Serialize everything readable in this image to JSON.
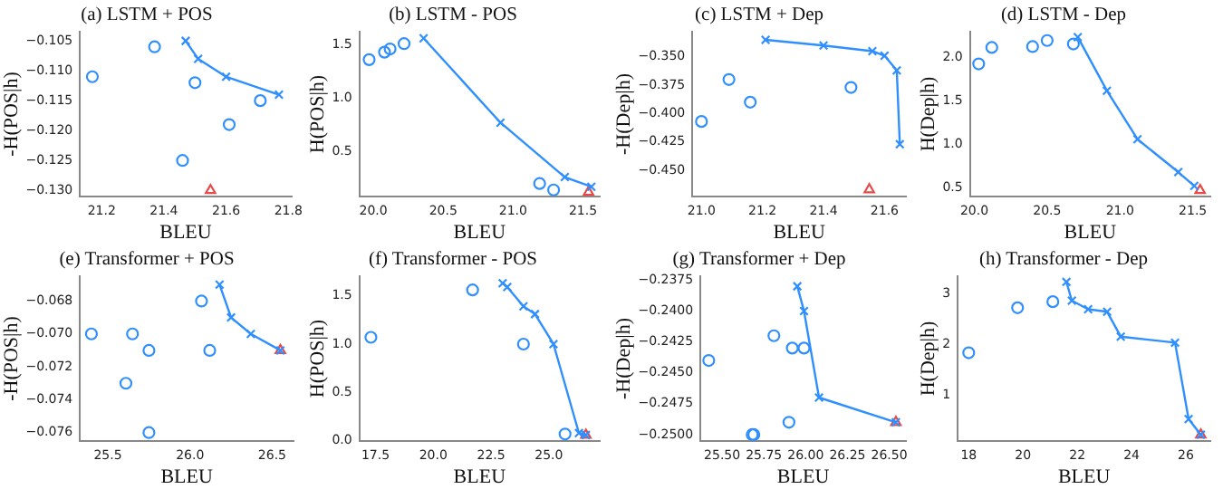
{
  "chart_data": [
    {
      "type": "scatter",
      "title": "(a) LSTM + POS",
      "xlabel": "BLEU",
      "ylabel": "-H(POS|h)",
      "xlim": [
        21.13,
        21.81
      ],
      "xticks": [
        21.2,
        21.4,
        21.6,
        21.8
      ],
      "ylim": [
        -0.131,
        -0.1035
      ],
      "yticks": [
        {
          "value": -0.105,
          "label": "−0.105"
        },
        {
          "value": -0.11,
          "label": "−0.110"
        },
        {
          "value": -0.115,
          "label": "−0.115"
        },
        {
          "value": -0.12,
          "label": "−0.120"
        },
        {
          "value": -0.125,
          "label": "−0.125"
        },
        {
          "value": -0.13,
          "label": "−0.130"
        }
      ],
      "series": [
        {
          "type": "scatter",
          "marker": "circle",
          "color": "#2f8fff",
          "x": [
            21.17,
            21.37,
            21.5,
            21.46,
            21.61,
            21.71
          ],
          "values": [
            -0.111,
            -0.106,
            -0.112,
            -0.125,
            -0.119,
            -0.115
          ]
        },
        {
          "type": "line",
          "marker": "cross",
          "color": "#2f8fff",
          "x": [
            21.47,
            21.51,
            21.6,
            21.77
          ],
          "values": [
            -0.105,
            -0.108,
            -0.111,
            -0.114
          ]
        },
        {
          "type": "scatter",
          "marker": "triangle",
          "color": "#e84a4a",
          "x": [
            21.55
          ],
          "values": [
            -0.13
          ]
        }
      ]
    },
    {
      "type": "scatter",
      "title": "(b) LSTM - POS",
      "xlabel": "BLEU",
      "ylabel": "H(POS|h)",
      "xlim": [
        19.9,
        21.62
      ],
      "xticks": [
        {
          "value": 20,
          "label": "20.0"
        },
        20.5,
        {
          "value": 21,
          "label": "21.0"
        },
        21.5
      ],
      "ylim": [
        0.08,
        1.62
      ],
      "yticks": [
        0.5,
        {
          "value": 1,
          "label": "1.0"
        },
        1.5
      ],
      "series": [
        {
          "type": "scatter",
          "marker": "circle",
          "color": "#2f8fff",
          "x": [
            19.97,
            20.08,
            20.12,
            20.22,
            21.19,
            21.29
          ],
          "values": [
            1.36,
            1.43,
            1.46,
            1.51,
            0.2,
            0.14
          ]
        },
        {
          "type": "line",
          "marker": "cross",
          "color": "#2f8fff",
          "x": [
            20.36,
            20.91,
            21.37,
            21.56
          ],
          "values": [
            1.56,
            0.77,
            0.26,
            0.17
          ]
        },
        {
          "type": "scatter",
          "marker": "triangle",
          "color": "#e84a4a",
          "x": [
            21.54
          ],
          "values": [
            0.12
          ]
        }
      ]
    },
    {
      "type": "scatter",
      "title": "(c) LSTM + Dep",
      "xlabel": "BLEU",
      "ylabel": "-H(Dep|h)",
      "xlim": [
        20.97,
        21.67
      ],
      "xticks": [
        {
          "value": 21,
          "label": "21.0"
        },
        21.2,
        21.4,
        21.6
      ],
      "ylim": [
        -0.473,
        -0.328
      ],
      "yticks": [
        {
          "value": -0.35,
          "label": "−0.350"
        },
        {
          "value": -0.375,
          "label": "−0.375"
        },
        {
          "value": -0.4,
          "label": "−0.400"
        },
        {
          "value": -0.425,
          "label": "−0.425"
        },
        {
          "value": -0.45,
          "label": "−0.450"
        }
      ],
      "series": [
        {
          "type": "scatter",
          "marker": "circle",
          "color": "#2f8fff",
          "x": [
            21.0,
            21.09,
            21.16,
            21.49
          ],
          "values": [
            -0.407,
            -0.37,
            -0.39,
            -0.377
          ]
        },
        {
          "type": "line",
          "marker": "cross",
          "color": "#2f8fff",
          "x": [
            21.21,
            21.4,
            21.56,
            21.6,
            21.64,
            21.65
          ],
          "values": [
            -0.335,
            -0.34,
            -0.345,
            -0.349,
            -0.362,
            -0.427
          ]
        },
        {
          "type": "scatter",
          "marker": "triangle",
          "color": "#e84a4a",
          "x": [
            21.55
          ],
          "values": [
            -0.467
          ]
        }
      ]
    },
    {
      "type": "scatter",
      "title": "(d) LSTM - Dep",
      "xlabel": "BLEU",
      "ylabel": "H(Dep|h)",
      "xlim": [
        19.97,
        21.62
      ],
      "xticks": [
        {
          "value": 20,
          "label": "20.0"
        },
        20.5,
        {
          "value": 21,
          "label": "21.0"
        },
        21.5
      ],
      "ylim": [
        0.4,
        2.3
      ],
      "yticks": [
        0.5,
        {
          "value": 1,
          "label": "1.0"
        },
        1.5,
        {
          "value": 2,
          "label": "2.0"
        }
      ],
      "series": [
        {
          "type": "scatter",
          "marker": "circle",
          "color": "#2f8fff",
          "x": [
            20.03,
            20.12,
            20.4,
            20.5,
            20.68
          ],
          "values": [
            1.93,
            2.12,
            2.13,
            2.2,
            2.16
          ]
        },
        {
          "type": "line",
          "marker": "cross",
          "color": "#2f8fff",
          "x": [
            20.71,
            20.91,
            21.12,
            21.4,
            21.51
          ],
          "values": [
            2.24,
            1.62,
            1.06,
            0.68,
            0.52
          ]
        },
        {
          "type": "scatter",
          "marker": "triangle",
          "color": "#e84a4a",
          "x": [
            21.55
          ],
          "values": [
            0.47
          ]
        }
      ]
    },
    {
      "type": "scatter",
      "title": "(e) Transformer + POS",
      "xlabel": "BLEU",
      "ylabel": "-H(POS|h)",
      "xlim": [
        25.33,
        26.63
      ],
      "xticks": [
        25.5,
        {
          "value": 26,
          "label": "26.0"
        },
        26.5
      ],
      "ylim": [
        -0.0765,
        -0.0665
      ],
      "yticks": [
        {
          "value": -0.068,
          "label": "−0.068"
        },
        {
          "value": -0.07,
          "label": "−0.070"
        },
        {
          "value": -0.072,
          "label": "−0.072"
        },
        {
          "value": -0.074,
          "label": "−0.074"
        },
        {
          "value": -0.076,
          "label": "−0.076"
        }
      ],
      "series": [
        {
          "type": "scatter",
          "marker": "circle",
          "color": "#2f8fff",
          "x": [
            25.4,
            25.61,
            25.65,
            25.75,
            25.75,
            26.07,
            26.12
          ],
          "values": [
            -0.07,
            -0.073,
            -0.07,
            -0.071,
            -0.076,
            -0.068,
            -0.071
          ]
        },
        {
          "type": "line",
          "marker": "cross",
          "color": "#2f8fff",
          "x": [
            26.18,
            26.25,
            26.37,
            26.55
          ],
          "values": [
            -0.067,
            -0.069,
            -0.07,
            -0.071
          ]
        },
        {
          "type": "scatter",
          "marker": "triangle",
          "color": "#e84a4a",
          "x": [
            26.55
          ],
          "values": [
            -0.071
          ]
        }
      ]
    },
    {
      "type": "scatter",
      "title": "(f) Transformer - POS",
      "xlabel": "BLEU",
      "ylabel": "H(POS|h)",
      "xlim": [
        16.8,
        27.2
      ],
      "xticks": [
        17.5,
        {
          "value": 20,
          "label": "20.0"
        },
        22.5,
        {
          "value": 25,
          "label": "25.0"
        }
      ],
      "ylim": [
        0,
        1.7
      ],
      "yticks": [
        {
          "value": 0,
          "label": "0.0"
        },
        0.5,
        {
          "value": 1,
          "label": "1.0"
        },
        1.5
      ],
      "series": [
        {
          "type": "scatter",
          "marker": "circle",
          "color": "#2f8fff",
          "x": [
            17.3,
            21.7,
            23.9,
            25.7
          ],
          "values": [
            1.07,
            1.56,
            1.0,
            0.07
          ]
        },
        {
          "type": "line",
          "marker": "cross",
          "color": "#2f8fff",
          "x": [
            23.0,
            23.2,
            23.9,
            24.4,
            25.2,
            26.3,
            26.6
          ],
          "values": [
            1.63,
            1.59,
            1.39,
            1.31,
            1.0,
            0.08,
            0.06
          ]
        },
        {
          "type": "scatter",
          "marker": "triangle",
          "color": "#e84a4a",
          "x": [
            26.6
          ],
          "values": [
            0.06
          ]
        }
      ]
    },
    {
      "type": "scatter",
      "title": "(g) Transformer + Dep",
      "xlabel": "BLEU",
      "ylabel": "-H(Dep|h)",
      "xlim": [
        25.37,
        26.6
      ],
      "xticks": [
        {
          "value": 25.5,
          "label": "25.50"
        },
        25.75,
        {
          "value": 26,
          "label": "26.00"
        },
        26.25,
        {
          "value": 26.5,
          "label": "26.50"
        }
      ],
      "ylim": [
        -0.2505,
        -0.2372
      ],
      "yticks": [
        {
          "value": -0.2375,
          "label": "−0.2375"
        },
        {
          "value": -0.24,
          "label": "−0.2400"
        },
        {
          "value": -0.2425,
          "label": "−0.2425"
        },
        {
          "value": -0.245,
          "label": "−0.2450"
        },
        {
          "value": -0.2475,
          "label": "−0.2475"
        },
        {
          "value": -0.25,
          "label": "−0.2500"
        }
      ],
      "series": [
        {
          "type": "scatter",
          "marker": "circle",
          "color": "#2f8fff",
          "x": [
            25.42,
            25.68,
            25.69,
            25.81,
            25.9,
            25.92,
            25.99
          ],
          "values": [
            -0.244,
            -0.25,
            -0.25,
            -0.242,
            -0.249,
            -0.243,
            -0.243
          ]
        },
        {
          "type": "line",
          "marker": "cross",
          "color": "#2f8fff",
          "x": [
            25.95,
            25.99,
            26.08,
            26.54
          ],
          "values": [
            -0.238,
            -0.24,
            -0.247,
            -0.249
          ]
        },
        {
          "type": "scatter",
          "marker": "triangle",
          "color": "#e84a4a",
          "x": [
            26.54
          ],
          "values": [
            -0.249
          ]
        }
      ]
    },
    {
      "type": "scatter",
      "title": "(h) Transformer - Dep",
      "xlabel": "BLEU",
      "ylabel": "H(Dep|h)",
      "xlim": [
        17.6,
        26.9
      ],
      "xticks": [
        18,
        20,
        22,
        24,
        26
      ],
      "ylim": [
        0.1,
        3.35
      ],
      "yticks": [
        1,
        2,
        3
      ],
      "series": [
        {
          "type": "scatter",
          "marker": "circle",
          "color": "#2f8fff",
          "x": [
            18.0,
            19.8,
            21.1
          ],
          "values": [
            1.84,
            2.73,
            2.85
          ]
        },
        {
          "type": "line",
          "marker": "cross",
          "color": "#2f8fff",
          "x": [
            21.6,
            21.8,
            22.4,
            23.1,
            23.6,
            25.6,
            26.1,
            26.55
          ],
          "values": [
            3.24,
            2.87,
            2.7,
            2.65,
            2.16,
            2.04,
            0.53,
            0.22
          ]
        },
        {
          "type": "scatter",
          "marker": "triangle",
          "color": "#e84a4a",
          "x": [
            26.55
          ],
          "values": [
            0.22
          ]
        }
      ]
    }
  ]
}
